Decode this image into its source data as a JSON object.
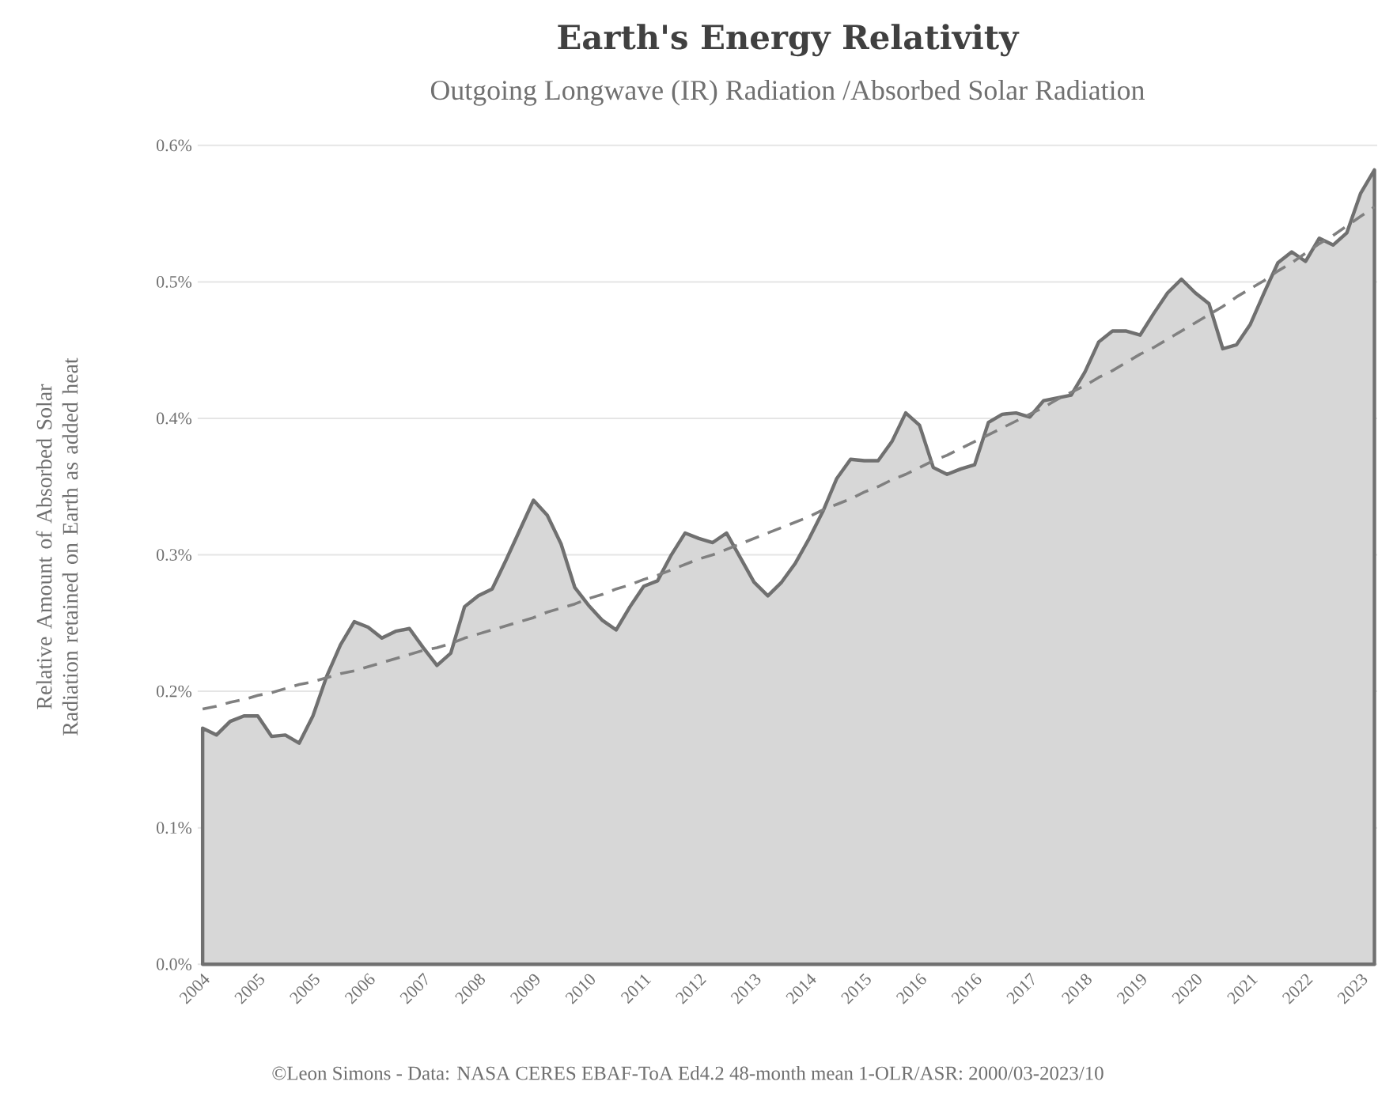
{
  "chart_data": {
    "type": "area",
    "title": "Earth's Energy Relativity",
    "subtitle": "Outgoing Longwave (IR) Radiation /Absorbed Solar Radiation",
    "ylabel": "Relative Amount of Absorbed Solar Radiation retained on Earth as added heat",
    "annotations": [
      "©Leon Simons - Data: NASA CERES EBAF-ToA Ed4.2 48-month mean 1-OLR/ASR: 2000/03-2023/10"
    ],
    "categories": [
      "2004",
      null,
      null,
      null,
      "2005",
      null,
      null,
      null,
      "2005",
      null,
      null,
      null,
      "2006",
      null,
      null,
      null,
      "2007",
      null,
      null,
      null,
      "2008",
      null,
      null,
      null,
      "2009",
      null,
      null,
      null,
      "2010",
      null,
      null,
      null,
      "2011",
      null,
      null,
      null,
      "2012",
      null,
      null,
      null,
      "2013",
      null,
      null,
      null,
      "2014",
      null,
      null,
      null,
      "2015",
      null,
      null,
      null,
      "2016",
      null,
      null,
      null,
      "2016",
      null,
      null,
      null,
      "2017",
      null,
      null,
      null,
      "2018",
      null,
      null,
      null,
      "2019",
      null,
      null,
      null,
      "2020",
      null,
      null,
      null,
      "2021",
      null,
      null,
      null,
      "2022",
      null,
      null,
      null,
      "2023",
      null
    ],
    "ylim": [
      0,
      0.6
    ],
    "yticks": [
      {
        "value": 0,
        "label": "0.0%"
      },
      {
        "value": 0.1,
        "label": "0.1%"
      },
      {
        "value": 0.2,
        "label": "0.2%"
      },
      {
        "value": 0.3,
        "label": "0.3%"
      },
      {
        "value": 0.4,
        "label": "0.4%"
      },
      {
        "value": 0.5,
        "label": "0.5%"
      },
      {
        "value": 0.6,
        "label": "0.6%"
      }
    ],
    "grid": "y",
    "marker": "none",
    "series": [
      {
        "color": "#707070",
        "line_style": "solid",
        "values": [
          0.173,
          0.168,
          0.178,
          0.182,
          0.182,
          0.167,
          0.168,
          0.162,
          0.182,
          0.211,
          0.234,
          0.251,
          0.247,
          0.239,
          0.244,
          0.246,
          0.232,
          0.219,
          0.228,
          0.262,
          0.27,
          0.275,
          0.296,
          0.318,
          0.34,
          0.329,
          0.308,
          0.276,
          0.263,
          0.252,
          0.245,
          0.262,
          0.277,
          0.281,
          0.3,
          0.316,
          0.312,
          0.309,
          0.316,
          0.298,
          0.28,
          0.27,
          0.28,
          0.294,
          0.312,
          0.332,
          0.356,
          0.37,
          0.369,
          0.369,
          0.383,
          0.404,
          0.395,
          0.364,
          0.359,
          0.363,
          0.366,
          0.397,
          0.403,
          0.404,
          0.401,
          0.413,
          0.415,
          0.417,
          0.434,
          0.456,
          0.464,
          0.464,
          0.461,
          0.477,
          0.492,
          0.502,
          0.492,
          0.484,
          0.451,
          0.454,
          0.469,
          0.492,
          0.514,
          0.522,
          0.515,
          0.532,
          0.527,
          0.536,
          0.565,
          0.582
        ]
      },
      {
        "type": "line",
        "color": "#808080",
        "line_style": "dashed",
        "values": [
          0.187,
          0.189,
          0.192,
          0.194,
          0.197,
          0.199,
          0.202,
          0.205,
          0.207,
          0.21,
          0.213,
          0.215,
          0.218,
          0.221,
          0.224,
          0.227,
          0.23,
          0.232,
          0.235,
          0.239,
          0.242,
          0.245,
          0.248,
          0.251,
          0.254,
          0.258,
          0.261,
          0.264,
          0.268,
          0.271,
          0.275,
          0.278,
          0.282,
          0.285,
          0.289,
          0.293,
          0.297,
          0.3,
          0.304,
          0.308,
          0.312,
          0.316,
          0.32,
          0.324,
          0.328,
          0.333,
          0.337,
          0.341,
          0.346,
          0.35,
          0.355,
          0.359,
          0.364,
          0.369,
          0.373,
          0.378,
          0.383,
          0.388,
          0.393,
          0.398,
          0.403,
          0.408,
          0.414,
          0.419,
          0.424,
          0.43,
          0.435,
          0.441,
          0.447,
          0.452,
          0.458,
          0.464,
          0.47,
          0.476,
          0.482,
          0.489,
          0.495,
          0.501,
          0.508,
          0.514,
          0.521,
          0.528,
          0.534,
          0.541,
          0.548,
          0.555
        ]
      }
    ]
  }
}
